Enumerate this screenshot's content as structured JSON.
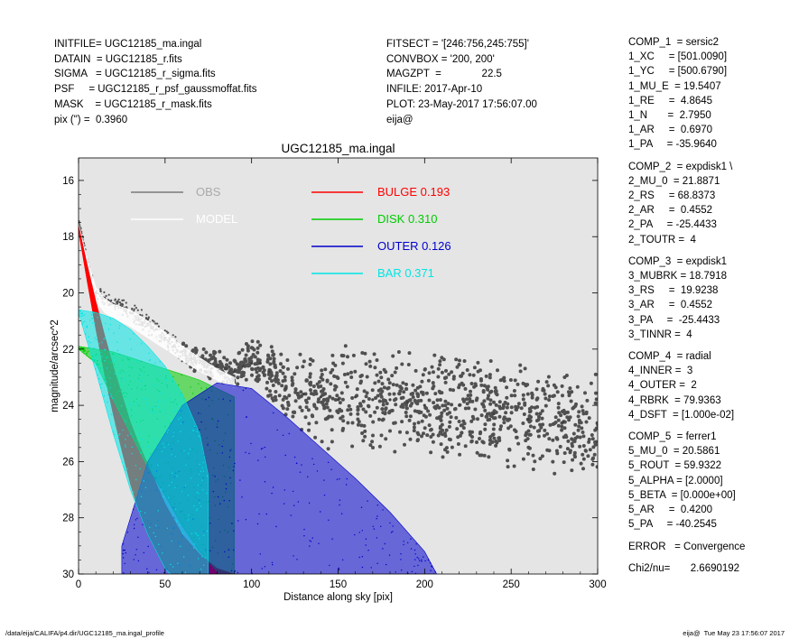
{
  "header_left": [
    "INITFILE= UGC12185_ma.ingal",
    "DATAIN  = UGC12185_r.fits",
    "SIGMA   = UGC12185_r_sigma.fits",
    "PSF     = UGC12185_r_psf_gaussmoffat.fits",
    "MASK    = UGC12185_r_mask.fits",
    "pix (\") =  0.3960"
  ],
  "header_mid": [
    "FITSECT = '[246:756,245:755]'",
    "CONVBOX = '200, 200'",
    "MAGZPT  =              22.5",
    "INFILE: 2017-Apr-10",
    "PLOT: 23-May-2017 17:56:07.00",
    "eija@"
  ],
  "components": [
    [
      "COMP_1  = sersic2",
      "1_XC     = [501.0090]",
      "1_YC     = [500.6790]",
      "1_MU_E  = 19.5407",
      "1_RE     =  4.8645",
      "1_N       =  2.7950",
      "1_AR     =  0.6970",
      "1_PA     = -35.9640"
    ],
    [
      "COMP_2  = expdisk1 \\",
      "2_MU_0  = 21.8871",
      "2_RS     = 68.8373",
      "2_AR     =  0.4552",
      "2_PA     = -25.4433",
      "2_TOUTR =  4"
    ],
    [
      "COMP_3  = expdisk1",
      "3_MUBRK = 18.7918",
      "3_RS     =  19.9238",
      "3_AR     =  0.4552",
      "3_PA     =  -25.4433",
      "3_TINNR =  4"
    ],
    [
      "COMP_4  = radial",
      "4_INNER =  3",
      "4_OUTER =  2",
      "4_RBRK  = 79.9363",
      "4_DSFT  = [1.000e-02]"
    ],
    [
      "COMP_5  = ferrer1",
      "5_MU_0  = 20.5861",
      "5_ROUT  = 59.9322",
      "5_ALPHA = [2.0000]",
      "5_BETA  = [0.000e+00]",
      "5_AR     =  0.4200",
      "5_PA     = -40.2545"
    ],
    [
      "ERROR   = Convergence"
    ],
    [
      "Chi2/nu=       2.6690192"
    ]
  ],
  "footer_left": "/data/eija/CALIFA/p4.dir/UGC12185_ma.ingal_profile",
  "footer_right": "eija@  Tue May 23 17:56:07 2017",
  "chart_data": {
    "type": "scatter",
    "title": "UGC12185_ma.ingal",
    "xlabel": "Distance along sky [pix]",
    "ylabel": "magnitude/arcsec^2",
    "xlim": [
      0,
      300
    ],
    "ylim": [
      30,
      15.2
    ],
    "xticks": [
      0,
      50,
      100,
      150,
      200,
      250,
      300
    ],
    "yticks": [
      16,
      18,
      20,
      22,
      24,
      26,
      28,
      30
    ],
    "y_inverted": true,
    "background": "#e5e5e5",
    "legend": [
      {
        "name": "OBS",
        "value": "",
        "color": "#7a7a7a",
        "text_color": "#aaaaaa"
      },
      {
        "name": "MODEL",
        "value": "",
        "color": "#ffffff",
        "text_color": "#ffffff"
      },
      {
        "name": "BULGE",
        "value": "0.193",
        "color": "#ff0000",
        "text_color": "#ff0000"
      },
      {
        "name": "DISK",
        "value": "0.310",
        "color": "#00cc00",
        "text_color": "#00cc00"
      },
      {
        "name": "OUTER",
        "value": "0.126",
        "color": "#0000cc",
        "text_color": "#0000cc"
      },
      {
        "name": "BAR",
        "value": "0.371",
        "color": "#00e5e5",
        "text_color": "#00e5e5"
      }
    ],
    "series": [
      {
        "name": "OBS",
        "kind": "scatter-cloud",
        "color": "#505050",
        "x": [
          0,
          2,
          5,
          10,
          15,
          20,
          25,
          30,
          35,
          40,
          45,
          50,
          55,
          60,
          65,
          70,
          75,
          80,
          85,
          90,
          95,
          100,
          105,
          110,
          120,
          130,
          140,
          150,
          160,
          170,
          180,
          190,
          200,
          220,
          240,
          260,
          280,
          300
        ],
        "y": [
          17.5,
          18.0,
          18.9,
          20.0,
          20.2,
          20.4,
          20.5,
          20.7,
          20.9,
          21.1,
          21.3,
          21.6,
          21.9,
          22.1,
          22.3,
          22.4,
          22.5,
          22.6,
          22.7,
          22.8,
          22.6,
          22.5,
          22.5,
          22.8,
          23.4,
          23.6,
          23.7,
          23.8,
          23.7,
          23.8,
          23.8,
          23.9,
          24.0,
          24.0,
          24.3,
          24.5,
          24.6,
          24.7
        ],
        "spread": [
          0.1,
          0.2,
          0.2,
          0.3,
          0.3,
          0.3,
          0.3,
          0.4,
          0.4,
          0.4,
          0.4,
          0.4,
          0.4,
          0.5,
          0.5,
          0.5,
          0.6,
          0.6,
          0.6,
          0.7,
          0.8,
          0.9,
          1.0,
          1.2,
          1.4,
          1.6,
          1.8,
          2.0,
          2.0,
          2.0,
          2.0,
          2.0,
          2.0,
          2.0,
          2.0,
          2.0,
          2.0,
          2.0
        ]
      },
      {
        "name": "MODEL",
        "kind": "band",
        "color": "#ffffff",
        "x": [
          0,
          3,
          6,
          10,
          15,
          20,
          30,
          40,
          50,
          60,
          70,
          80,
          90
        ],
        "y_upper": [
          17.5,
          18.3,
          19.0,
          19.8,
          20.2,
          20.4,
          20.6,
          21.0,
          21.4,
          21.9,
          22.3,
          22.7,
          23.0
        ],
        "y_lower": [
          17.7,
          18.6,
          19.4,
          20.3,
          20.7,
          20.9,
          21.2,
          21.6,
          22.0,
          22.4,
          22.8,
          23.1,
          23.4
        ]
      },
      {
        "name": "BULGE",
        "kind": "band",
        "color": "#ff0000",
        "x": [
          0,
          5,
          10,
          15,
          20,
          25,
          30,
          35,
          40,
          50,
          60,
          70,
          80,
          90,
          95
        ],
        "y_upper": [
          17.6,
          19.0,
          20.3,
          21.5,
          22.6,
          23.6,
          24.6,
          25.4,
          26.1,
          27.5,
          28.6,
          29.3,
          29.8,
          30.0,
          30.2
        ],
        "y_lower": [
          17.8,
          19.6,
          21.3,
          22.9,
          24.3,
          25.6,
          26.8,
          27.8,
          28.6,
          29.8,
          30.3,
          30.5,
          30.5,
          30.5,
          30.5
        ]
      },
      {
        "name": "DISK",
        "kind": "band",
        "color": "#00cc00",
        "x": [
          0,
          10,
          20,
          30,
          40,
          50,
          60,
          70,
          80,
          90
        ],
        "y_upper": [
          21.9,
          22.0,
          22.1,
          22.3,
          22.5,
          22.7,
          22.9,
          23.1,
          23.4,
          23.7
        ],
        "y_lower": [
          22.0,
          22.5,
          23.8,
          25.0,
          26.2,
          27.2,
          28.3,
          29.2,
          29.9,
          30.5
        ]
      },
      {
        "name": "OUTER",
        "kind": "band",
        "color": "#0000cc",
        "x": [
          25,
          40,
          60,
          80,
          100,
          120,
          140,
          160,
          180,
          200,
          207
        ],
        "y_upper": [
          29.0,
          26.0,
          24.0,
          23.2,
          23.4,
          24.4,
          25.5,
          26.6,
          27.8,
          29.2,
          30.0
        ],
        "y_lower": [
          30.2,
          30.2,
          30.2,
          30.2,
          30.2,
          30.2,
          30.2,
          30.2,
          30.2,
          30.2,
          30.2
        ]
      },
      {
        "name": "BAR",
        "kind": "band",
        "color": "#00e5e5",
        "x": [
          0,
          10,
          20,
          30,
          40,
          50,
          60,
          70,
          75
        ],
        "y_upper": [
          20.6,
          20.7,
          20.9,
          21.3,
          21.9,
          22.6,
          23.6,
          25.0,
          26.5
        ],
        "y_lower": [
          20.7,
          22.8,
          25.0,
          27.0,
          28.6,
          29.8,
          30.5,
          30.5,
          30.5
        ]
      }
    ]
  }
}
